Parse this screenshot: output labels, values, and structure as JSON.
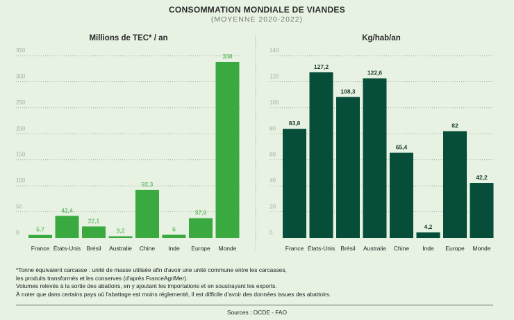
{
  "title": "CONSOMMATION MONDIALE DE VIANDES",
  "subtitle": "(MOYENNE 2020-2022)",
  "chart_data": [
    {
      "type": "bar",
      "title": "Millions de TEC* / an",
      "categories": [
        "France",
        "États-Unis",
        "Brésil",
        "Australie",
        "Chine",
        "Inde",
        "Europe",
        "Monde"
      ],
      "values": [
        5.7,
        42.4,
        22.1,
        3.2,
        92.3,
        6,
        37.9,
        338
      ],
      "value_labels": [
        "5,7",
        "42,4",
        "22,1",
        "3,2",
        "92,3",
        "6",
        "37,9",
        "338"
      ],
      "yticks": [
        0,
        50,
        100,
        150,
        200,
        250,
        300,
        350
      ],
      "ylim": [
        0,
        350
      ],
      "grid": true,
      "color": "#3aaa40"
    },
    {
      "type": "bar",
      "title": "Kg/hab/an",
      "categories": [
        "France",
        "États-Unis",
        "Brésil",
        "Australie",
        "Chine",
        "Inde",
        "Europe",
        "Monde"
      ],
      "values": [
        83.8,
        127.2,
        108.3,
        122.6,
        65.4,
        4.2,
        82,
        42.2
      ],
      "value_labels": [
        "83,8",
        "127,2",
        "108,3",
        "122,6",
        "65,4",
        "4,2",
        "82",
        "42,2"
      ],
      "yticks": [
        0,
        20,
        40,
        60,
        80,
        100,
        120,
        140
      ],
      "ylim": [
        0,
        140
      ],
      "grid": true,
      "color": "#064d3a"
    }
  ],
  "notes": [
    "*Tonne équivalent carcasse : unité de masse utilisée afin d'avoir une unité commune entre les carcasses,",
    "les produits transformés et les conserves (d'après FranceAgriMer).",
    "Volumes relevés à la sortie des abattoirs, en y ajoutant les importations et en soustrayant les exports.",
    "À noter que dans certains pays où l'abattage est moins réglementé, il est difficile d'avoir des données issues des abattoirs."
  ],
  "sources": "Sources : OCDE - FAO"
}
